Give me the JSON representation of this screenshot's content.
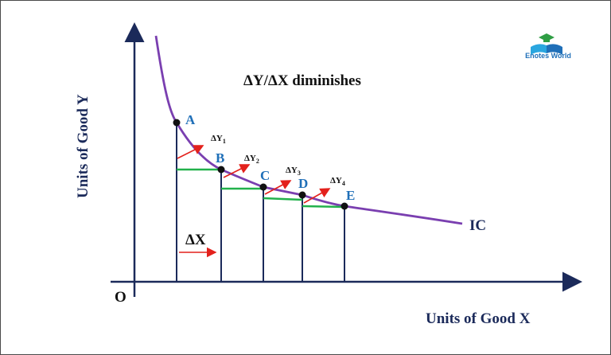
{
  "title": "ΔY/ΔX diminishes",
  "y_axis_label": "Units of Good Y",
  "x_axis_label": "Units of Good X",
  "origin_label": "O",
  "curve_label": "IC",
  "delta_x_label": "ΔX",
  "points": [
    "A",
    "B",
    "C",
    "D",
    "E"
  ],
  "delta_y": [
    {
      "base": "ΔY",
      "sub": "1"
    },
    {
      "base": "ΔY",
      "sub": "2"
    },
    {
      "base": "ΔY",
      "sub": "3"
    },
    {
      "base": "ΔY",
      "sub": "4"
    }
  ],
  "logo_text": "Enotes World",
  "colors": {
    "axis": "#1b2a5a",
    "curve": "#7a3fb0",
    "point_label": "#1f6fb8",
    "horizontal_step": "#22b14c",
    "arrow": "#e3211c",
    "dot": "#111111"
  }
}
